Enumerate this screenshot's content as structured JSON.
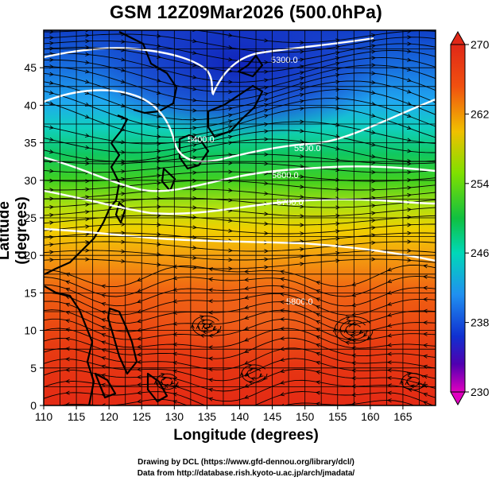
{
  "title": "GSM 12Z09Mar2026 (500.0hPa)",
  "xlabel": "Longitude (degrees)",
  "ylabel": "Latitude  (degrees)",
  "credit_line1": "Drawing by DCL (https://www.gfd-dennou.org/library/dcl/)",
  "credit_line2": "Data from http://database.rish.kyoto-u.ac.jp/arch/jmadata/",
  "map": {
    "lon_range": [
      110,
      170
    ],
    "lat_range": [
      0,
      50
    ],
    "x_ticks": [
      "110",
      "115",
      "120",
      "125",
      "130",
      "135",
      "140",
      "145",
      "150",
      "155",
      "160",
      "165"
    ],
    "y_ticks": [
      "0",
      "5",
      "10",
      "15",
      "20",
      "25",
      "30",
      "35",
      "40",
      "45"
    ],
    "gridlines": true,
    "streamlines": true,
    "coastline_color": "#000000"
  },
  "contours": {
    "color": "#ffffff",
    "labels": [
      "5300.0",
      "5400.0",
      "5500.0",
      "5600.0",
      "5700.0",
      "5800.0"
    ]
  },
  "colorbar": {
    "labels": [
      "270",
      "262",
      "254",
      "246",
      "238",
      "230"
    ],
    "stops": [
      "#e02818",
      "#f07010",
      "#f0c000",
      "#80e000",
      "#10c040",
      "#00d8b8",
      "#2090f0",
      "#1030d0",
      "#5000b0",
      "#e000c0"
    ]
  }
}
